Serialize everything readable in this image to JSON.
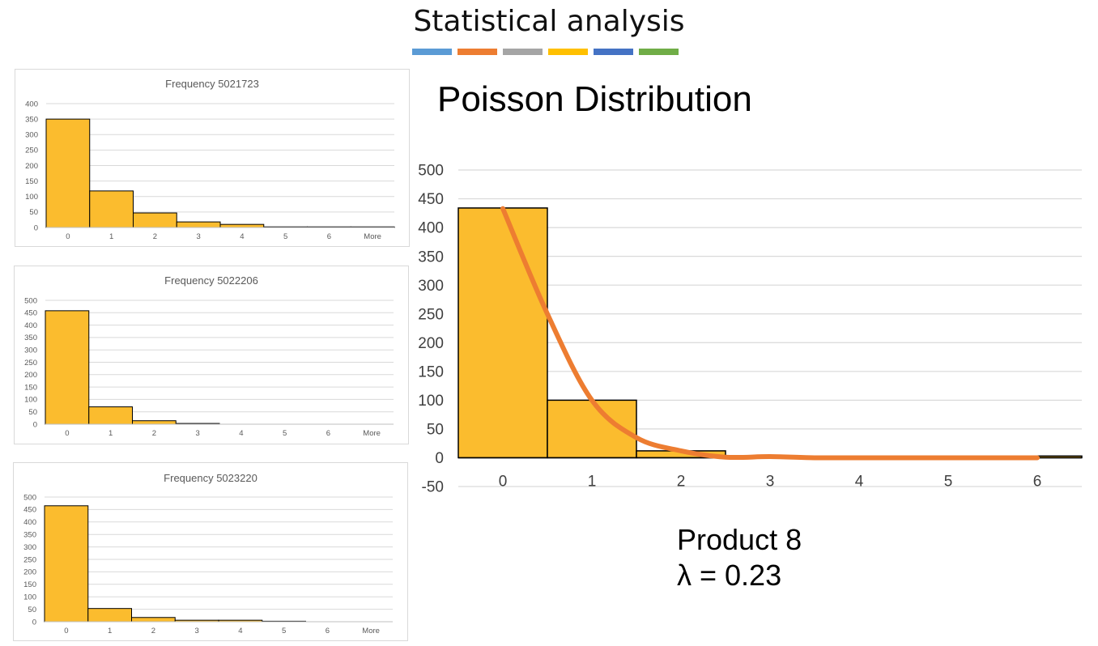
{
  "page": {
    "title": "Statistical analysis",
    "accent_colors": [
      "#5b9bd5",
      "#ed7d31",
      "#a5a5a5",
      "#ffc000",
      "#4472c4",
      "#70ad47"
    ]
  },
  "colors": {
    "bar_fill": "#fbbc2e",
    "bar_stroke": "#000000",
    "fit_line": "#ed7d31",
    "grid": "#d9d9d9",
    "tick_text": "#595959"
  },
  "main": {
    "heading": "Poisson Distribution",
    "caption_product": "Product 8",
    "caption_lambda": "λ = 0.23"
  },
  "chart_data": [
    {
      "type": "bar",
      "title": "Frequency 5021723",
      "categories": [
        "0",
        "1",
        "2",
        "3",
        "4",
        "5",
        "6",
        "More"
      ],
      "values": [
        350,
        118,
        47,
        18,
        10,
        2,
        2,
        2
      ],
      "ylim": [
        0,
        400
      ],
      "yticks": [
        0,
        50,
        100,
        150,
        200,
        250,
        300,
        350,
        400
      ],
      "grid": true
    },
    {
      "type": "bar",
      "title": "Frequency 5022206",
      "categories": [
        "0",
        "1",
        "2",
        "3",
        "4",
        "5",
        "6",
        "More"
      ],
      "values": [
        458,
        70,
        14,
        3,
        0,
        0,
        0,
        0
      ],
      "ylim": [
        0,
        500
      ],
      "yticks": [
        0,
        50,
        100,
        150,
        200,
        250,
        300,
        350,
        400,
        450,
        500
      ],
      "grid": true
    },
    {
      "type": "bar",
      "title": "Frequency 5023220",
      "categories": [
        "0",
        "1",
        "2",
        "3",
        "4",
        "5",
        "6",
        "More"
      ],
      "values": [
        465,
        53,
        17,
        6,
        6,
        2,
        0,
        0
      ],
      "ylim": [
        0,
        500
      ],
      "yticks": [
        0,
        50,
        100,
        150,
        200,
        250,
        300,
        350,
        400,
        450,
        500
      ],
      "grid": true
    },
    {
      "type": "bar",
      "title": "",
      "categories": [
        "0",
        "1",
        "2",
        "3",
        "4",
        "5",
        "6"
      ],
      "values": [
        434,
        100,
        12,
        1,
        0,
        0,
        3
      ],
      "ylim": [
        -50,
        500
      ],
      "yticks": [
        -50,
        0,
        50,
        100,
        150,
        200,
        250,
        300,
        350,
        400,
        450,
        500
      ],
      "grid": true,
      "line": {
        "x": [
          0,
          0.5,
          1,
          1.5,
          2,
          2.5,
          3,
          3.5,
          4,
          5,
          6
        ],
        "y": [
          433,
          250,
          100,
          35,
          12,
          1,
          2,
          0,
          0,
          0,
          0
        ]
      }
    }
  ]
}
